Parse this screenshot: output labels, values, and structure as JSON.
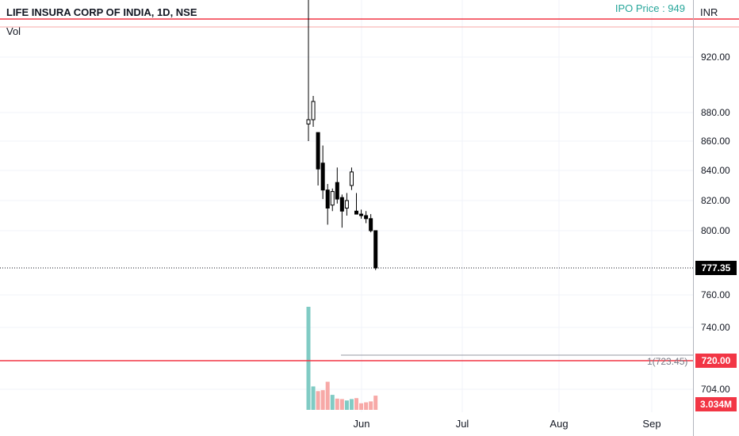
{
  "header": {
    "title": "LIFE INSURA CORP OF INDIA, 1D, NSE",
    "volume_label": "Vol",
    "ipo_label": "IPO Price : 949",
    "currency": "INR"
  },
  "price_axis": {
    "ticks": [
      "920.00",
      "880.00",
      "860.00",
      "840.00",
      "820.00",
      "800.00",
      "760.00",
      "740.00",
      "704.00"
    ],
    "last_price": "777.35",
    "line_price": "720.00",
    "volume_value": "3.034M"
  },
  "x_axis": {
    "labels": [
      "Jun",
      "Jul",
      "Aug",
      "Sep"
    ]
  },
  "annotations": {
    "ray_label": "1(723.45)",
    "ray_price": 723.45,
    "ipo_line_price": 949,
    "support_line_price": 720
  },
  "colors": {
    "up": "#ffffff",
    "down": "#000000",
    "vol_up": "#80cbc4",
    "vol_down": "#f7a9a7",
    "hline": "#f23645",
    "ray": "#9598a1",
    "last_price_bg": "#000000",
    "line_price_bg": "#f23645",
    "volume_tag_bg": "#f23645"
  },
  "chart_data": {
    "type": "candlestick",
    "title": "LIFE INSURA CORP OF INDIA, 1D, NSE",
    "x_labels": [
      "Jun",
      "Jul",
      "Aug",
      "Sep"
    ],
    "y_ticks": [
      920,
      880,
      860,
      840,
      820,
      800,
      760,
      740,
      704
    ],
    "candles": [
      {
        "o": 872,
        "h": 949,
        "l": 860,
        "c": 875,
        "v": 22.0
      },
      {
        "o": 875,
        "h": 892,
        "l": 870,
        "c": 888,
        "v": 5.0
      },
      {
        "o": 866,
        "h": 866,
        "l": 830,
        "c": 841,
        "v": 4.0
      },
      {
        "o": 845,
        "h": 857,
        "l": 821,
        "c": 827,
        "v": 4.2
      },
      {
        "o": 827,
        "h": 831,
        "l": 804,
        "c": 815,
        "v": 6.0
      },
      {
        "o": 817,
        "h": 828,
        "l": 813,
        "c": 826,
        "v": 3.2
      },
      {
        "o": 832,
        "h": 842,
        "l": 818,
        "c": 821,
        "v": 2.4
      },
      {
        "o": 822,
        "h": 824,
        "l": 802,
        "c": 813,
        "v": 2.3
      },
      {
        "o": 815,
        "h": 825,
        "l": 810,
        "c": 820,
        "v": 2.0
      },
      {
        "o": 830,
        "h": 842,
        "l": 827,
        "c": 839,
        "v": 2.3
      },
      {
        "o": 813,
        "h": 825,
        "l": 811,
        "c": 811,
        "v": 2.5
      },
      {
        "o": 811,
        "h": 814,
        "l": 808,
        "c": 810,
        "v": 1.4
      },
      {
        "o": 810,
        "h": 813,
        "l": 805,
        "c": 808,
        "v": 1.6
      },
      {
        "o": 808,
        "h": 811,
        "l": 799,
        "c": 800,
        "v": 1.8
      },
      {
        "o": 800,
        "h": 800,
        "l": 776,
        "c": 777.35,
        "v": 3.034
      }
    ],
    "volume_unit": "M"
  }
}
